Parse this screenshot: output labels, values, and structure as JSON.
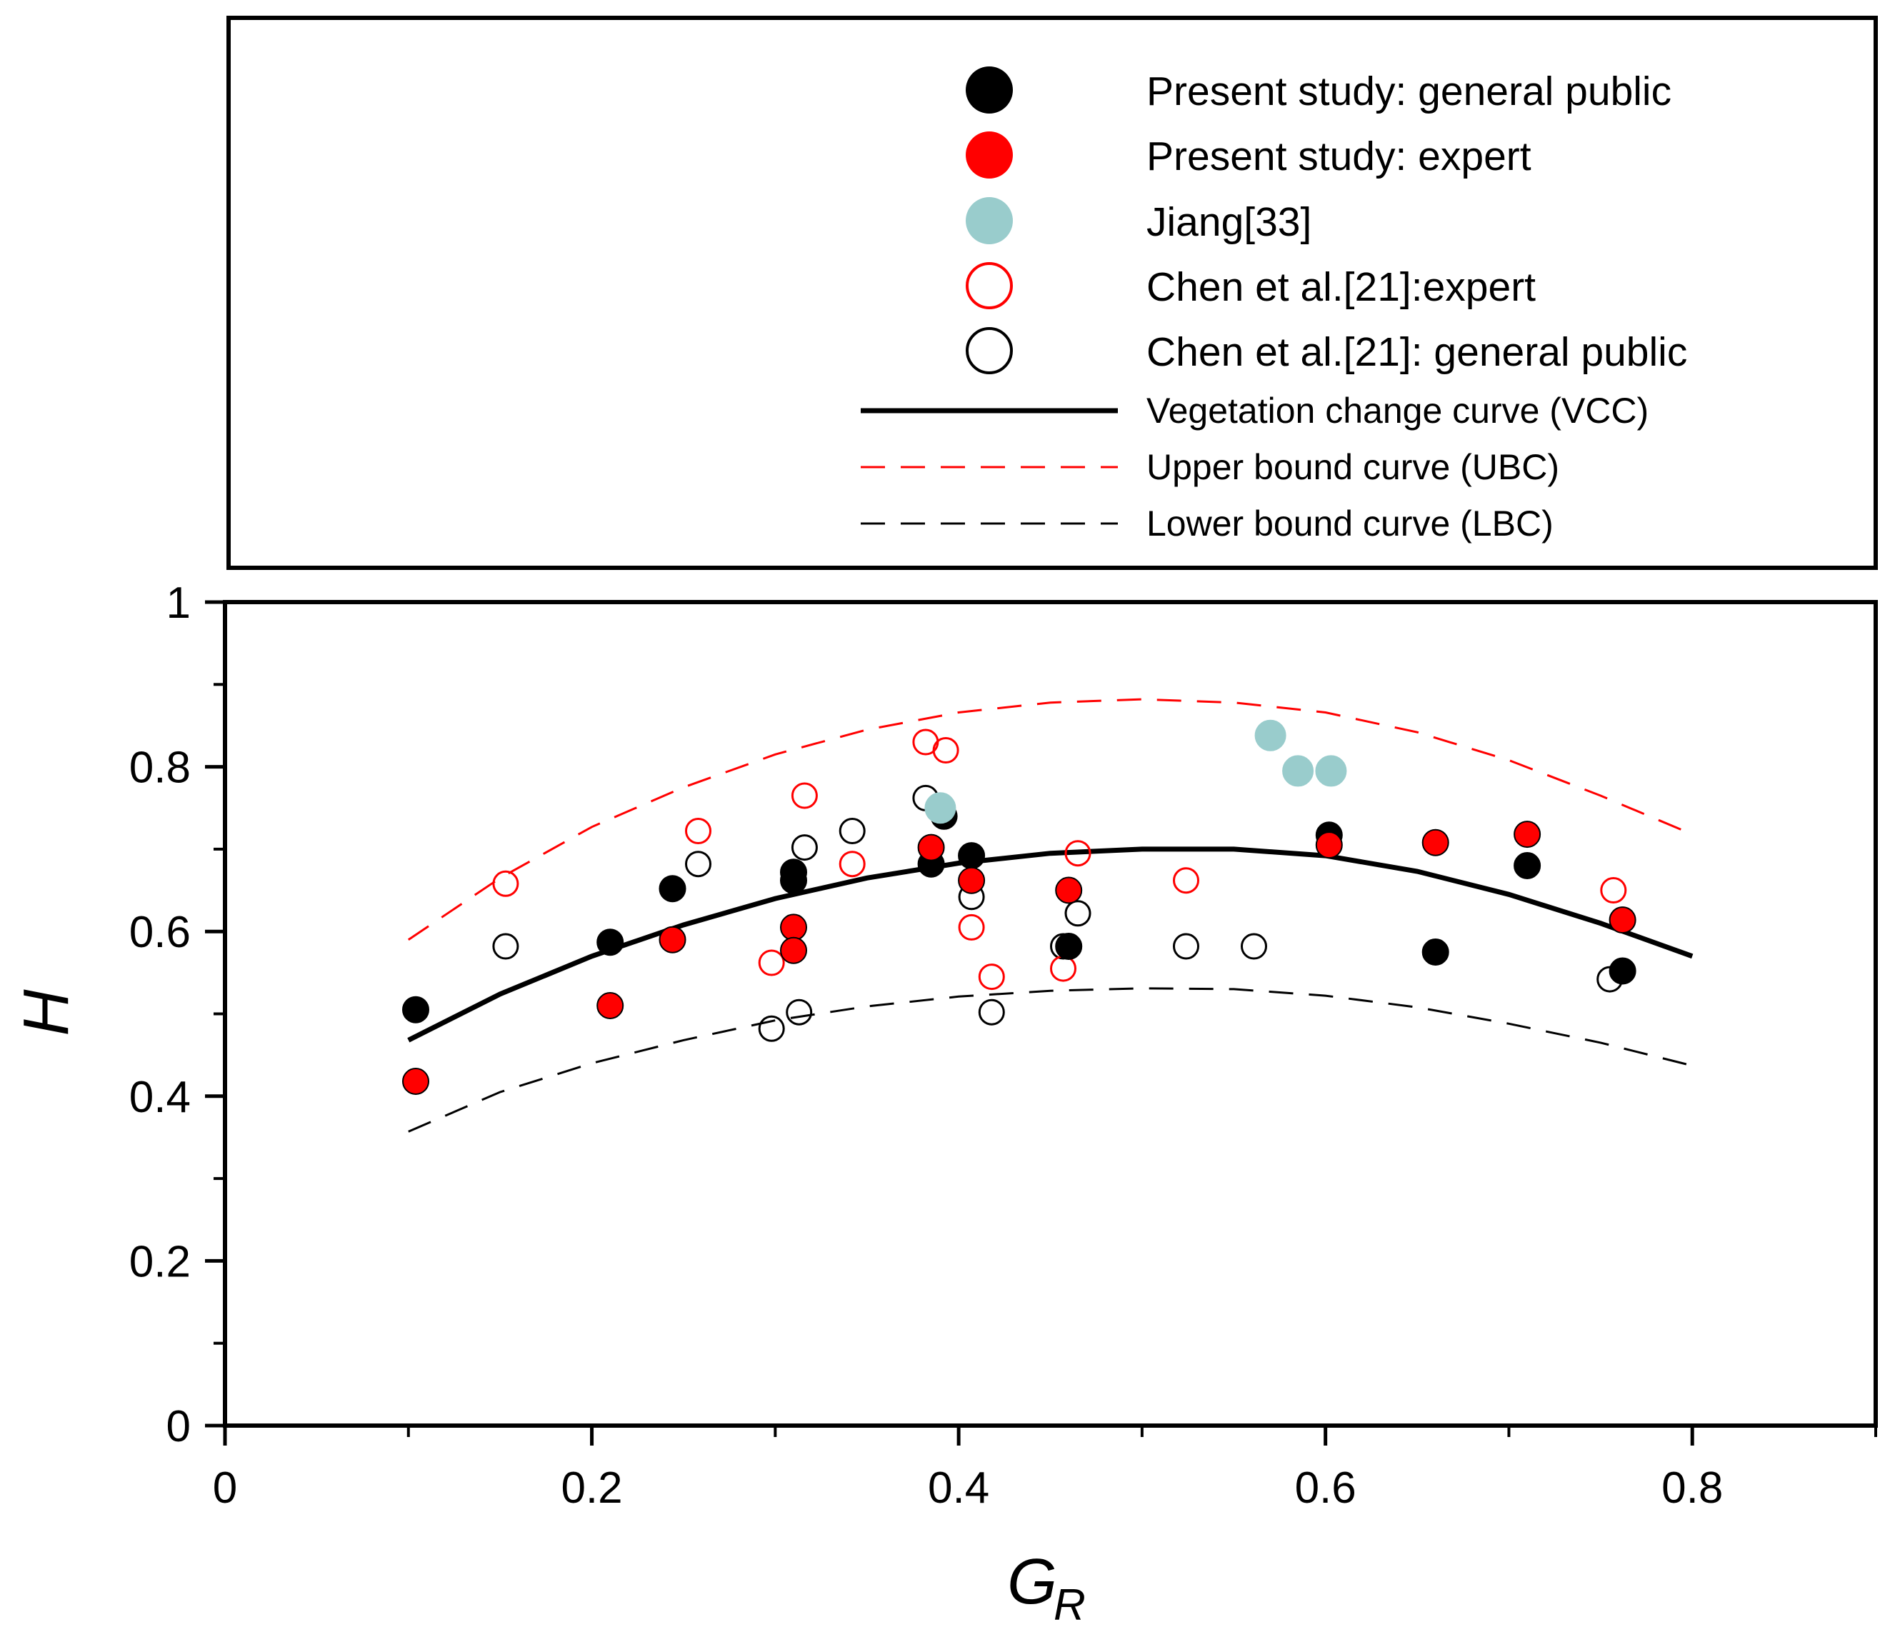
{
  "chart_data": {
    "type": "scatter",
    "xlabel": "G",
    "xlabel_subscript": "R",
    "ylabel": "H",
    "xlim": [
      0,
      0.9
    ],
    "ylim": [
      0,
      1
    ],
    "x_ticks": [
      "0",
      "0.2",
      "0.4",
      "0.6",
      "0.8"
    ],
    "y_ticks": [
      "0",
      "0.2",
      "0.4",
      "0.6",
      "0.8",
      "1"
    ],
    "x_tick_values": [
      0,
      0.2,
      0.4,
      0.6,
      0.8
    ],
    "y_tick_values": [
      0,
      0.2,
      0.4,
      0.6,
      0.8,
      1
    ],
    "x_minor_ticks": [
      0.1,
      0.3,
      0.5,
      0.7,
      0.9
    ],
    "y_minor_ticks": [
      0.1,
      0.3,
      0.5,
      0.7,
      0.9
    ],
    "grid": false,
    "legend_position": "top",
    "series": [
      {
        "name": "Present study: general public",
        "marker": "filled-circle",
        "color": "#000000",
        "points": [
          [
            0.104,
            0.505
          ],
          [
            0.21,
            0.587
          ],
          [
            0.244,
            0.652
          ],
          [
            0.31,
            0.672
          ],
          [
            0.31,
            0.662
          ],
          [
            0.385,
            0.682
          ],
          [
            0.392,
            0.74
          ],
          [
            0.407,
            0.692
          ],
          [
            0.46,
            0.582
          ],
          [
            0.602,
            0.717
          ],
          [
            0.66,
            0.575
          ],
          [
            0.71,
            0.68
          ],
          [
            0.762,
            0.552
          ]
        ]
      },
      {
        "name": "Present study: expert",
        "marker": "filled-circle",
        "color": "#ff0000",
        "points": [
          [
            0.104,
            0.418
          ],
          [
            0.21,
            0.51
          ],
          [
            0.244,
            0.59
          ],
          [
            0.31,
            0.605
          ],
          [
            0.31,
            0.577
          ],
          [
            0.385,
            0.702
          ],
          [
            0.407,
            0.662
          ],
          [
            0.46,
            0.65
          ],
          [
            0.602,
            0.705
          ],
          [
            0.66,
            0.708
          ],
          [
            0.71,
            0.718
          ],
          [
            0.762,
            0.614
          ]
        ]
      },
      {
        "name": "Jiang[33]",
        "marker": "filled-circle",
        "color": "#99cccc",
        "points": [
          [
            0.39,
            0.75
          ],
          [
            0.57,
            0.838
          ],
          [
            0.585,
            0.795
          ],
          [
            0.603,
            0.795
          ]
        ]
      },
      {
        "name": "Chen et al.[21]:expert",
        "marker": "open-circle",
        "color": "#ff0000",
        "points": [
          [
            0.153,
            0.658
          ],
          [
            0.258,
            0.722
          ],
          [
            0.298,
            0.562
          ],
          [
            0.316,
            0.765
          ],
          [
            0.342,
            0.682
          ],
          [
            0.382,
            0.83
          ],
          [
            0.393,
            0.82
          ],
          [
            0.407,
            0.605
          ],
          [
            0.418,
            0.545
          ],
          [
            0.457,
            0.555
          ],
          [
            0.465,
            0.695
          ],
          [
            0.524,
            0.662
          ],
          [
            0.757,
            0.65
          ]
        ]
      },
      {
        "name": "Chen et al.[21]: general public",
        "marker": "open-circle",
        "color": "#000000",
        "points": [
          [
            0.153,
            0.582
          ],
          [
            0.258,
            0.682
          ],
          [
            0.298,
            0.482
          ],
          [
            0.313,
            0.502
          ],
          [
            0.316,
            0.702
          ],
          [
            0.342,
            0.722
          ],
          [
            0.382,
            0.762
          ],
          [
            0.407,
            0.642
          ],
          [
            0.418,
            0.502
          ],
          [
            0.457,
            0.582
          ],
          [
            0.465,
            0.622
          ],
          [
            0.524,
            0.582
          ],
          [
            0.561,
            0.582
          ],
          [
            0.755,
            0.542
          ]
        ]
      }
    ],
    "curves": [
      {
        "name": "Vegetation change curve (VCC)",
        "style": "solid",
        "color": "#000000",
        "x": [
          0.1,
          0.15,
          0.2,
          0.25,
          0.3,
          0.35,
          0.4,
          0.45,
          0.5,
          0.55,
          0.6,
          0.65,
          0.7,
          0.75,
          0.8
        ],
        "y": [
          0.468,
          0.524,
          0.57,
          0.608,
          0.64,
          0.665,
          0.683,
          0.695,
          0.7,
          0.7,
          0.692,
          0.673,
          0.645,
          0.61,
          0.57
        ]
      },
      {
        "name": "Upper bound curve (UBC)",
        "style": "dashed",
        "color": "#ff0000",
        "x": [
          0.1,
          0.15,
          0.2,
          0.25,
          0.3,
          0.35,
          0.4,
          0.45,
          0.5,
          0.55,
          0.6,
          0.65,
          0.7,
          0.75,
          0.8
        ],
        "y": [
          0.59,
          0.665,
          0.727,
          0.775,
          0.815,
          0.845,
          0.866,
          0.878,
          0.882,
          0.878,
          0.866,
          0.842,
          0.808,
          0.765,
          0.718
        ]
      },
      {
        "name": "Lower bound curve (LBC)",
        "style": "dashed",
        "color": "#000000",
        "x": [
          0.1,
          0.15,
          0.2,
          0.25,
          0.3,
          0.35,
          0.4,
          0.45,
          0.5,
          0.55,
          0.6,
          0.65,
          0.7,
          0.75,
          0.8
        ],
        "y": [
          0.357,
          0.405,
          0.44,
          0.468,
          0.492,
          0.509,
          0.521,
          0.528,
          0.531,
          0.53,
          0.522,
          0.508,
          0.488,
          0.465,
          0.437
        ]
      }
    ]
  }
}
